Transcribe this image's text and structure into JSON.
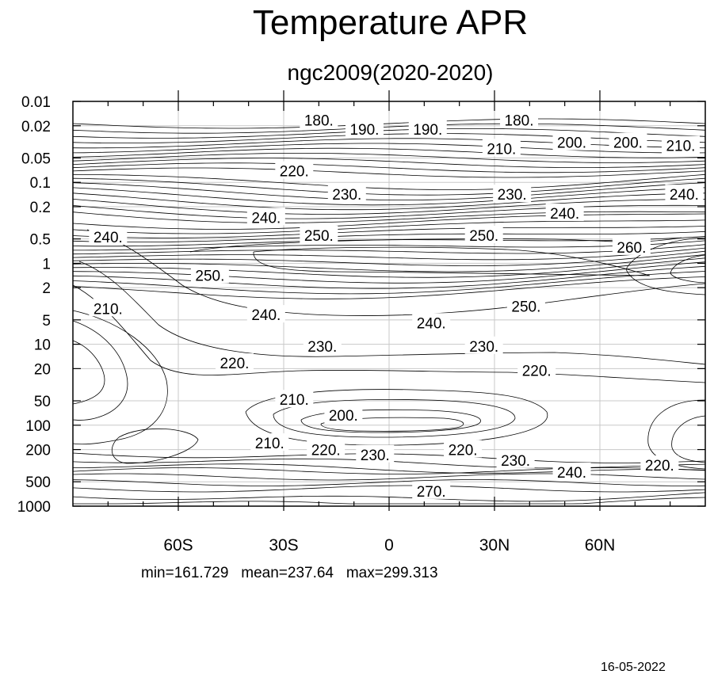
{
  "chart_data": {
    "type": "contour",
    "title": "Temperature APR",
    "subtitle": "ngc2009(2020-2020)",
    "stats": {
      "min": "min=161.729",
      "mean": "mean=237.64",
      "max": "max=299.313"
    },
    "date": "16-05-2022",
    "x_range": [
      -90,
      90
    ],
    "x_ticks": [
      {
        "value": -60,
        "label": "60S"
      },
      {
        "value": -30,
        "label": "30S"
      },
      {
        "value": 0,
        "label": "0"
      },
      {
        "value": 30,
        "label": "30N"
      },
      {
        "value": 60,
        "label": "60N"
      }
    ],
    "y_scale": "log",
    "y_range": [
      1000,
      0.01
    ],
    "y_ticks": [
      0.01,
      0.02,
      0.05,
      0.1,
      0.2,
      0.5,
      1,
      2,
      5,
      10,
      20,
      50,
      100,
      200,
      500,
      1000
    ],
    "y_tick_labels": [
      "0.01",
      "0.02",
      "0.05",
      "0.1",
      "0.2",
      "0.5",
      "1",
      "2",
      "5",
      "10",
      "20",
      "50",
      "100",
      "200",
      "500",
      "1000"
    ],
    "grid": true,
    "contour_labels": [
      {
        "text": "180.",
        "lat": -20,
        "p": 0.017
      },
      {
        "text": "190.",
        "lat": -7,
        "p": 0.022
      },
      {
        "text": "190.",
        "lat": 11,
        "p": 0.022
      },
      {
        "text": "180.",
        "lat": 37,
        "p": 0.017
      },
      {
        "text": "200.",
        "lat": 52,
        "p": 0.032
      },
      {
        "text": "200.",
        "lat": 68,
        "p": 0.032
      },
      {
        "text": "210.",
        "lat": 32,
        "p": 0.038
      },
      {
        "text": "210.",
        "lat": 83,
        "p": 0.035
      },
      {
        "text": "220.",
        "lat": -27,
        "p": 0.072
      },
      {
        "text": "230.",
        "lat": -12,
        "p": 0.14
      },
      {
        "text": "230.",
        "lat": 35,
        "p": 0.14
      },
      {
        "text": "240.",
        "lat": 84,
        "p": 0.14
      },
      {
        "text": "240.",
        "lat": -35,
        "p": 0.27
      },
      {
        "text": "240.",
        "lat": 50,
        "p": 0.24
      },
      {
        "text": "240.",
        "lat": -80,
        "p": 0.47
      },
      {
        "text": "250.",
        "lat": -20,
        "p": 0.45
      },
      {
        "text": "250.",
        "lat": 27,
        "p": 0.45
      },
      {
        "text": "260.",
        "lat": 69,
        "p": 0.63
      },
      {
        "text": "250.",
        "lat": -51,
        "p": 1.4
      },
      {
        "text": "250.",
        "lat": 39,
        "p": 3.4
      },
      {
        "text": "240.",
        "lat": -35,
        "p": 4.3
      },
      {
        "text": "240.",
        "lat": 12,
        "p": 5.4
      },
      {
        "text": "210.",
        "lat": -80,
        "p": 3.6
      },
      {
        "text": "230.",
        "lat": -19,
        "p": 10.5
      },
      {
        "text": "230.",
        "lat": 27,
        "p": 10.5
      },
      {
        "text": "220.",
        "lat": -44,
        "p": 17
      },
      {
        "text": "220.",
        "lat": 42,
        "p": 21
      },
      {
        "text": "210.",
        "lat": -27,
        "p": 48
      },
      {
        "text": "200.",
        "lat": -13,
        "p": 75
      },
      {
        "text": "210.",
        "lat": -34,
        "p": 165
      },
      {
        "text": "220.",
        "lat": -18,
        "p": 200
      },
      {
        "text": "230.",
        "lat": -4,
        "p": 230
      },
      {
        "text": "220.",
        "lat": 21,
        "p": 200
      },
      {
        "text": "230.",
        "lat": 36,
        "p": 270
      },
      {
        "text": "240.",
        "lat": 52,
        "p": 380
      },
      {
        "text": "220.",
        "lat": 77,
        "p": 310
      },
      {
        "text": "270.",
        "lat": 12,
        "p": 650
      }
    ]
  }
}
